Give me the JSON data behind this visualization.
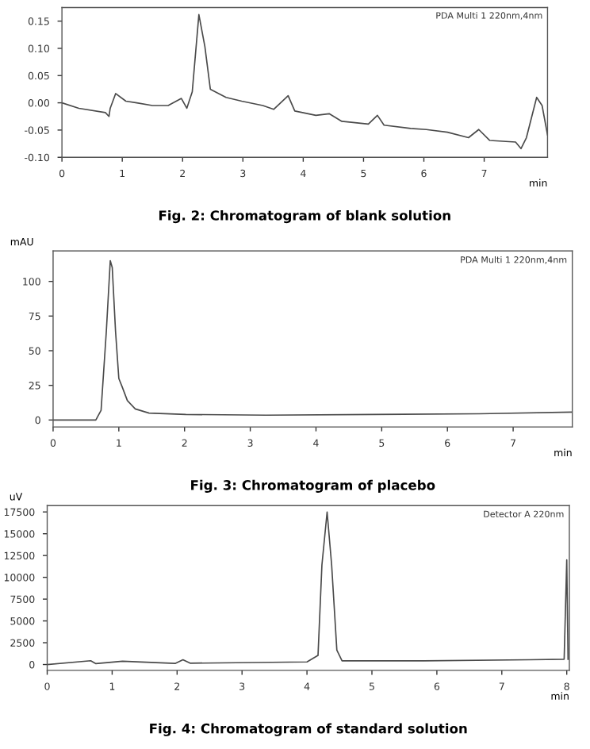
{
  "chart_data": [
    {
      "type": "line",
      "title": "Fig. 2: Chromatogram of blank solution",
      "xlabel": "min",
      "annotations": [
        "PDA Multi 1 220nm,4nm"
      ],
      "xlim": [
        0,
        8.05
      ],
      "ylim": [
        -0.1,
        0.175
      ],
      "xticks": [
        0,
        1,
        2,
        3,
        4,
        5,
        6,
        7
      ],
      "yticks": [
        {
          "value": -0.1,
          "label": "-0.10"
        },
        {
          "value": -0.05,
          "label": "-0.05"
        },
        {
          "value": 0,
          "label": "0.00"
        },
        {
          "value": 0.05,
          "label": "0.05"
        },
        {
          "value": 0.1,
          "label": "0.10"
        },
        {
          "value": 0.15,
          "label": "0.15"
        }
      ],
      "grid": false,
      "legend": false,
      "marker": "none",
      "line_style": "solid",
      "series": [
        {
          "color": "#4a4a4a",
          "x": [
            0,
            0.28,
            0.72,
            0.78,
            0.8,
            0.89,
            1.06,
            1.24,
            1.5,
            1.76,
            1.98,
            2.07,
            2.16,
            2.27,
            2.37,
            2.46,
            2.72,
            2.98,
            3.33,
            3.51,
            3.75,
            3.86,
            4.21,
            4.43,
            4.64,
            5.08,
            5.23,
            5.34,
            5.78,
            6.04,
            6.39,
            6.74,
            6.91,
            7.09,
            7.52,
            7.61,
            7.7,
            7.87,
            7.96,
            8.05
          ],
          "values": [
            0,
            -0.01,
            -0.018,
            -0.025,
            -0.01,
            0.017,
            0.003,
            0,
            -0.005,
            -0.005,
            0.008,
            -0.01,
            0.02,
            0.162,
            0.103,
            0.025,
            0.01,
            0.003,
            -0.005,
            -0.012,
            0.013,
            -0.015,
            -0.023,
            -0.02,
            -0.034,
            -0.039,
            -0.023,
            -0.041,
            -0.047,
            -0.049,
            -0.054,
            -0.064,
            -0.049,
            -0.069,
            -0.072,
            -0.084,
            -0.064,
            0.01,
            -0.005,
            -0.059
          ]
        }
      ]
    },
    {
      "type": "line",
      "title": "Fig. 3: Chromatogram of placebo",
      "xlabel": "min",
      "ylabel": "mAU",
      "annotations": [
        "PDA Multi 1 220nm,4nm"
      ],
      "xlim": [
        0,
        7.9
      ],
      "ylim": [
        -5,
        122
      ],
      "xticks": [
        0,
        1,
        2,
        3,
        4,
        5,
        6,
        7
      ],
      "yticks": [
        0,
        25,
        50,
        75,
        100
      ],
      "grid": false,
      "legend": false,
      "marker": "none",
      "line_style": "solid",
      "series": [
        {
          "color": "#4a4a4a",
          "x": [
            0,
            0.65,
            0.73,
            0.81,
            0.87,
            0.9,
            0.95,
            1.0,
            1.05,
            1.13,
            1.25,
            1.46,
            2.02,
            3.24,
            4.86,
            6.48,
            7.9
          ],
          "values": [
            0,
            0,
            7,
            64,
            115,
            110,
            64,
            30,
            24,
            14,
            8,
            5,
            4,
            3.5,
            4,
            4.5,
            5.7
          ]
        }
      ]
    },
    {
      "type": "line",
      "title": "Fig. 4: Chromatogram of standard solution",
      "xlabel": "min",
      "ylabel": "uV",
      "annotations": [
        "Detector A 220nm"
      ],
      "xlim": [
        0,
        8.04
      ],
      "ylim": [
        -670,
        18230
      ],
      "xticks": [
        0,
        1,
        2,
        3,
        4,
        5,
        6,
        7,
        8
      ],
      "yticks": [
        0,
        2500,
        5000,
        7500,
        10000,
        12500,
        15000,
        17500
      ],
      "grid": false,
      "legend": false,
      "marker": "none",
      "line_style": "solid",
      "series": [
        {
          "color": "#4a4a4a",
          "x": [
            0,
            0.67,
            0.75,
            1.16,
            1.97,
            2.09,
            2.2,
            4.0,
            4.17,
            4.23,
            4.31,
            4.38,
            4.46,
            4.54,
            5.8,
            7.43,
            7.96,
            8.0,
            8.02
          ],
          "values": [
            0,
            430,
            100,
            370,
            120,
            550,
            150,
            300,
            1040,
            11400,
            17500,
            11400,
            1650,
            430,
            430,
            550,
            610,
            12000,
            610
          ]
        }
      ]
    }
  ]
}
